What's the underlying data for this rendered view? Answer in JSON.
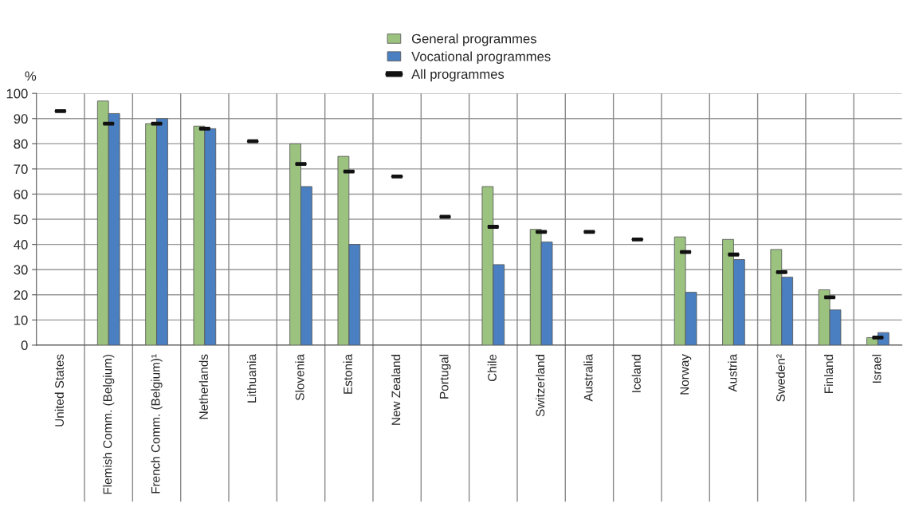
{
  "chart_data": {
    "type": "bar",
    "ylabel": "%",
    "categories": [
      "United States",
      "Flemish Comm. (Belgium)",
      "French Comm. (Belgium)¹",
      "Netherlands",
      "Lithuania",
      "Slovenia",
      "Estonia",
      "New Zealand",
      "Portugal",
      "Chile",
      "Switzerland",
      "Australia",
      "Iceland",
      "Norway",
      "Austria",
      "Sweden²",
      "Finland",
      "Israel"
    ],
    "series": [
      {
        "name": "General programmes",
        "color": "#9bc27f",
        "values": [
          null,
          97,
          88,
          87,
          null,
          80,
          75,
          null,
          null,
          63,
          46,
          null,
          null,
          43,
          42,
          38,
          22,
          3
        ]
      },
      {
        "name": "Vocational programmes",
        "color": "#4a7fc1",
        "values": [
          null,
          92,
          90,
          86,
          null,
          63,
          40,
          null,
          null,
          32,
          41,
          null,
          null,
          21,
          34,
          27,
          14,
          5
        ]
      },
      {
        "name": "All programmes",
        "type": "scatter",
        "color": "#111111",
        "values": [
          93,
          88,
          88,
          86,
          81,
          72,
          69,
          67,
          51,
          47,
          45,
          45,
          42,
          37,
          36,
          29,
          19,
          3
        ]
      }
    ],
    "ylim": [
      0,
      100
    ],
    "yticks": [
      0,
      10,
      20,
      30,
      40,
      50,
      60,
      70,
      80,
      90,
      100
    ],
    "grid": true,
    "legend": "top"
  }
}
